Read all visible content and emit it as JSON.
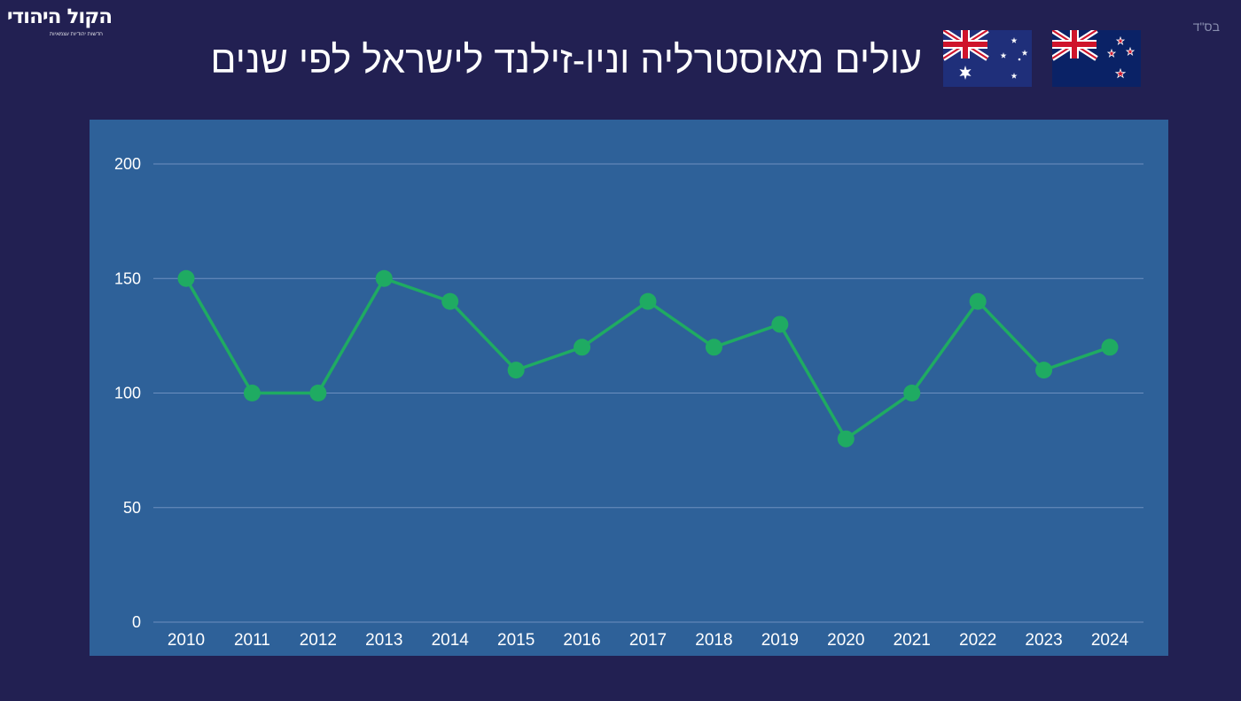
{
  "header": {
    "logo_main": "הקול היהודי",
    "logo_sub": "חדשות יהודיות עצמאיות",
    "bsd": "בס\"ד",
    "title": "עולים מאוסטרליה וניו-זילנד לישראל לפי שנים"
  },
  "flags": [
    {
      "name": "australia-flag-icon"
    },
    {
      "name": "new-zealand-flag-icon"
    }
  ],
  "colors": {
    "background": "#222052",
    "panel": "#2e6199",
    "line": "#1fab62",
    "grid": "#6d8fbf",
    "text": "#ffffff"
  },
  "chart_data": {
    "type": "line",
    "title": "עולים מאוסטרליה וניו-זילנד לישראל לפי שנים",
    "xlabel": "",
    "ylabel": "",
    "x": [
      "2010",
      "2011",
      "2012",
      "2013",
      "2014",
      "2015",
      "2016",
      "2017",
      "2018",
      "2019",
      "2020",
      "2021",
      "2022",
      "2023",
      "2024"
    ],
    "series": [
      {
        "values": [
          150,
          100,
          100,
          150,
          140,
          110,
          120,
          140,
          120,
          130,
          80,
          100,
          140,
          110,
          120
        ]
      }
    ],
    "ylim": [
      0,
      200
    ],
    "yticks": [
      0,
      50,
      100,
      150,
      200
    ],
    "grid": true,
    "legend": "none"
  }
}
